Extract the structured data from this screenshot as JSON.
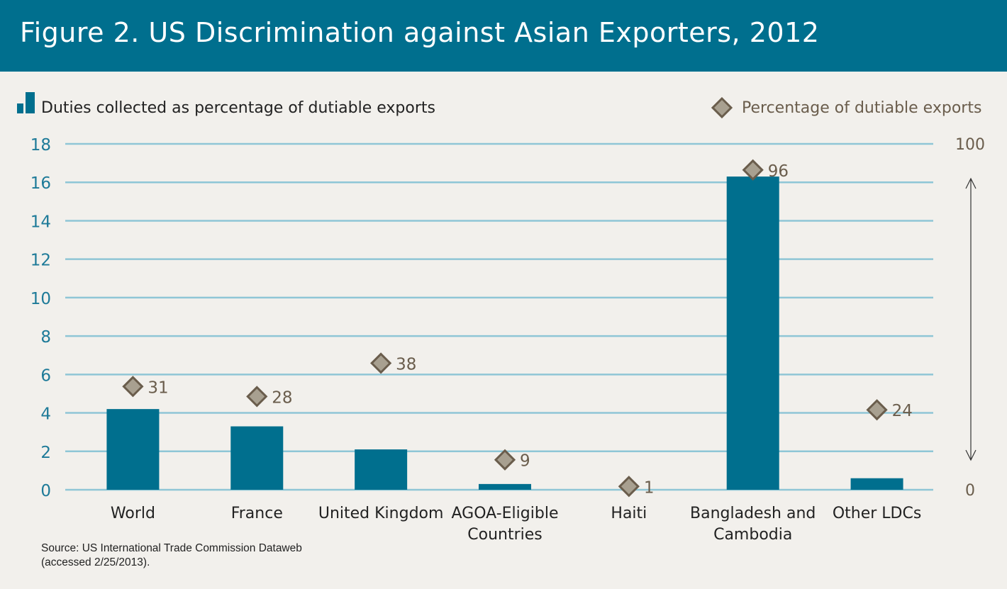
{
  "header": {
    "title": "Figure 2. US Discrimination against Asian Exporters, 2012"
  },
  "colors": {
    "bar": "#006f8e",
    "header_bg": "#006f8e",
    "gridline": "#8fc6d6",
    "left_axis_text": "#1d7a98",
    "marker_fill": "#a8a090",
    "marker_stroke": "#6a5d4c",
    "marker_label": "#6a5d4c",
    "right_axis_text": "#6a5d4c"
  },
  "chart_data": {
    "type": "bar",
    "title": "Figure 2. US Discrimination against Asian Exporters, 2012",
    "categories": [
      [
        "World"
      ],
      [
        "France"
      ],
      [
        "United Kingdom"
      ],
      [
        "AGOA-Eligible",
        "Countries"
      ],
      [
        "Haiti"
      ],
      [
        "Bangladesh and",
        "Cambodia"
      ],
      [
        "Other LDCs"
      ]
    ],
    "series": [
      {
        "name": "Duties collected as percentage of dutiable exports",
        "type": "bar",
        "axis": "left",
        "values": [
          4.2,
          3.3,
          2.1,
          0.3,
          0.0,
          16.3,
          0.6
        ]
      },
      {
        "name": "Percentage of dutiable exports",
        "type": "scatter",
        "marker": "diamond",
        "axis": "right",
        "values": [
          31,
          28,
          38,
          9,
          1,
          96,
          24
        ],
        "labels": [
          "31",
          "28",
          "38",
          "9",
          "1",
          "96",
          "24"
        ]
      }
    ],
    "y_left": {
      "ylim": [
        0,
        18
      ],
      "ticks": [
        "0",
        "2",
        "4",
        "6",
        "8",
        "10",
        "12",
        "14",
        "16",
        "18"
      ]
    },
    "y_right": {
      "ylim": [
        0,
        100
      ],
      "ticks": [
        "0",
        "100"
      ]
    },
    "legend": [
      {
        "label": "Duties collected as percentage of dutiable exports",
        "position": "top-left"
      },
      {
        "label": "Percentage of dutiable exports",
        "position": "top-right"
      }
    ],
    "grid": true,
    "source": [
      "Source: US International Trade Commission Dataweb",
      "(accessed 2/25/2013)."
    ]
  }
}
